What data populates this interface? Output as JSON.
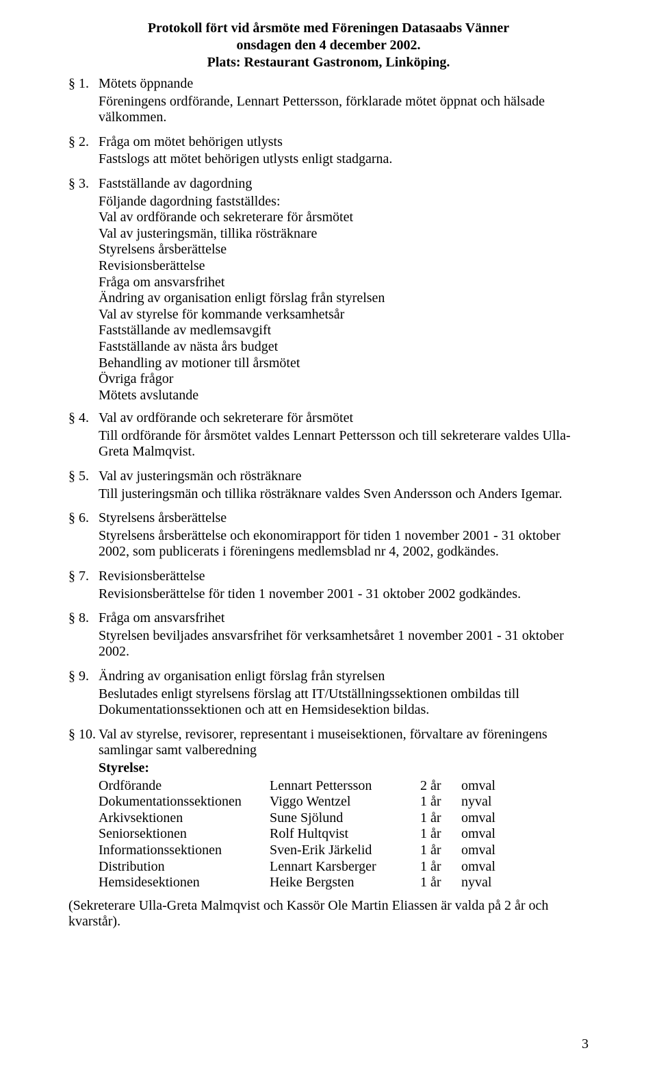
{
  "title": "Protokoll fört vid årsmöte med Föreningen Datasaabs Vänner",
  "subtitle": "onsdagen den 4 december 2002.",
  "location": "Plats: Restaurant Gastronom, Linköping.",
  "sections": [
    {
      "num": "§ 1.",
      "heading": "Mötets öppnande",
      "body": [
        "Föreningens ordförande, Lennart Pettersson, förklarade mötet öppnat och hälsade välkommen."
      ]
    },
    {
      "num": "§ 2.",
      "heading": "Fråga om mötet behörigen utlysts",
      "body": [
        "Fastslogs att mötet behörigen utlysts enligt stadgarna."
      ]
    },
    {
      "num": "§ 3.",
      "heading": "Fastställande av dagordning",
      "body": [
        "Följande dagordning fastställdes:",
        "Val av ordförande och sekreterare för årsmötet",
        "Val av justeringsmän, tillika rösträknare",
        "Styrelsens årsberättelse",
        "Revisionsberättelse",
        "Fråga om ansvarsfrihet",
        "Ändring av organisation enligt förslag från styrelsen",
        "Val av styrelse för kommande verksamhetsår",
        "Fastställande av medlemsavgift",
        "Fastställande av nästa års budget",
        "Behandling av motioner till årsmötet",
        "Övriga frågor",
        "Mötets avslutande"
      ]
    },
    {
      "num": "§ 4.",
      "heading": "Val av ordförande och sekreterare för årsmötet",
      "body": [
        "Till ordförande för årsmötet valdes Lennart Pettersson och till sekreterare valdes Ulla-Greta Malmqvist."
      ]
    },
    {
      "num": "§ 5.",
      "heading": "Val av justeringsmän och rösträknare",
      "body": [
        "Till justeringsmän och tillika rösträknare valdes Sven Andersson och Anders Igemar."
      ]
    },
    {
      "num": "§ 6.",
      "heading": "Styrelsens årsberättelse",
      "body": [
        "Styrelsens årsberättelse och ekonomirapport för tiden 1 november 2001 - 31 oktober 2002, som publicerats i föreningens medlemsblad nr 4, 2002, godkändes."
      ]
    },
    {
      "num": "§ 7.",
      "heading": "Revisionsberättelse",
      "body": [
        "Revisionsberättelse för tiden 1 november 2001 - 31 oktober 2002 godkändes."
      ]
    },
    {
      "num": "§ 8.",
      "heading": "Fråga om ansvarsfrihet",
      "body": [
        "Styrelsen beviljades ansvarsfrihet för verksamhetsåret 1 november 2001 - 31 oktober 2002."
      ]
    },
    {
      "num": "§ 9.",
      "heading": "Ändring av organisation enligt förslag från styrelsen",
      "body": [
        "Beslutades enligt styrelsens förslag att IT/Utställningssektionen ombildas till Dokumentationssektionen och att en Hemsidesektion bildas."
      ]
    },
    {
      "num": "§ 10.",
      "heading": "Val av styrelse, revisorer, representant i museisektionen, förvaltare av föreningens samlingar samt valberedning",
      "body": []
    }
  ],
  "styrelse_label": "Styrelse:",
  "styrelse": [
    {
      "role": "Ordförande",
      "name": "Lennart Pettersson",
      "term": "2 år",
      "status": "omval"
    },
    {
      "role": "Dokumentationssektionen",
      "name": "Viggo Wentzel",
      "term": "1 år",
      "status": "nyval"
    },
    {
      "role": "Arkivsektionen",
      "name": "Sune Sjölund",
      "term": "1 år",
      "status": "omval"
    },
    {
      "role": "Seniorsektionen",
      "name": "Rolf Hultqvist",
      "term": "1 år",
      "status": "omval"
    },
    {
      "role": "Informationssektionen",
      "name": "Sven-Erik Järkelid",
      "term": "1 år",
      "status": "omval"
    },
    {
      "role": "Distribution",
      "name": "Lennart Karsberger",
      "term": "1 år",
      "status": "omval"
    },
    {
      "role": "Hemsidesektionen",
      "name": "Heike Bergsten",
      "term": "1 år",
      "status": "nyval"
    }
  ],
  "footer_note": "(Sekreterare Ulla-Greta Malmqvist och Kassör Ole Martin Eliassen är valda på 2 år och kvarstår).",
  "page_number": "3"
}
